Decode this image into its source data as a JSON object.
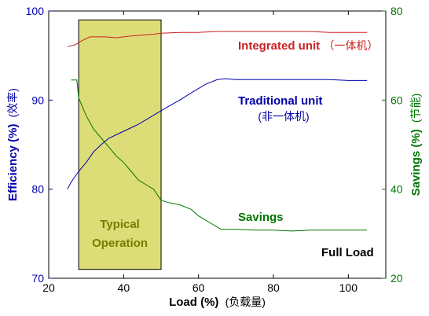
{
  "chart_data": {
    "type": "line",
    "xlabel": "Load (%)",
    "xlabel_cn": "(负载量)",
    "ylabel_left": "Efficiency (%)",
    "ylabel_left_cn": "(效率)",
    "ylabel_right": "Savings (%)",
    "ylabel_right_cn": "(节能)",
    "xlim": [
      20,
      110
    ],
    "ylim_left": [
      70,
      100
    ],
    "ylim_right": [
      20,
      80
    ],
    "xticks": [
      20,
      40,
      60,
      80,
      100
    ],
    "yticks_left": [
      70,
      80,
      90,
      100
    ],
    "yticks_right": [
      20,
      40,
      60,
      80
    ],
    "grid": false,
    "colors": {
      "left_axis": "#0000aa",
      "right_axis": "#007700",
      "integrated": "#cc2222",
      "traditional": "#0000aa",
      "savings": "#007700",
      "band_fill": "#dddd77",
      "band_text": "#7a7a00"
    },
    "band": {
      "x_start": 28,
      "x_end": 50,
      "y_top": 99,
      "y_bottom": 71,
      "label_line1": "Typical",
      "label_line2": "Operation"
    },
    "series": [
      {
        "name": "Integrated unit",
        "name_cn": "（一体机）",
        "axis": "left",
        "color": "#cc2222",
        "x": [
          25,
          27,
          29,
          31,
          33,
          35,
          38,
          40,
          42,
          45,
          48,
          50,
          55,
          60,
          65,
          70,
          75,
          80,
          85,
          90,
          95,
          100,
          105
        ],
        "y": [
          96.0,
          96.2,
          96.7,
          97.1,
          97.1,
          97.1,
          97.0,
          97.1,
          97.2,
          97.3,
          97.4,
          97.5,
          97.6,
          97.6,
          97.7,
          97.7,
          97.7,
          97.7,
          97.7,
          97.7,
          97.6,
          97.6,
          97.6
        ]
      },
      {
        "name": "Traditional unit",
        "name_cn": "(非一体机)",
        "axis": "left",
        "color": "#0000aa",
        "x": [
          25,
          26,
          28,
          30,
          32,
          34,
          36,
          38,
          40,
          42,
          44,
          46,
          48,
          50,
          52,
          55,
          58,
          60,
          62,
          65,
          67,
          70,
          75,
          80,
          85,
          90,
          95,
          100,
          105
        ],
        "y": [
          80.0,
          80.8,
          82.0,
          83.0,
          84.2,
          85.0,
          85.7,
          86.1,
          86.5,
          86.9,
          87.3,
          87.8,
          88.3,
          88.8,
          89.3,
          90.0,
          90.8,
          91.3,
          91.8,
          92.3,
          92.4,
          92.3,
          92.3,
          92.3,
          92.3,
          92.3,
          92.3,
          92.2,
          92.2
        ]
      },
      {
        "name": "Savings",
        "axis": "right",
        "color": "#007700",
        "x": [
          26,
          27.5,
          28,
          30,
          32,
          34,
          36,
          38,
          40,
          42,
          44,
          46,
          48,
          50,
          52,
          55,
          58,
          60,
          62,
          64,
          66,
          70,
          75,
          80,
          85,
          90,
          95,
          100,
          105
        ],
        "y": [
          64.5,
          64.5,
          60.5,
          56.5,
          53.5,
          51.5,
          49.5,
          47.5,
          46.0,
          44.0,
          42.0,
          41.0,
          40.0,
          37.5,
          37.0,
          36.5,
          35.5,
          34.0,
          33.0,
          32.0,
          31.0,
          31.0,
          30.8,
          30.8,
          30.6,
          30.8,
          30.8,
          30.8,
          30.8
        ]
      }
    ],
    "annotations": {
      "integrated_label": "Integrated unit",
      "integrated_label_cn": "（一体机）",
      "traditional_label": "Traditional unit",
      "traditional_label_cn": "(非一体机)",
      "savings_label": "Savings",
      "full_load_label": "Full Load"
    }
  }
}
